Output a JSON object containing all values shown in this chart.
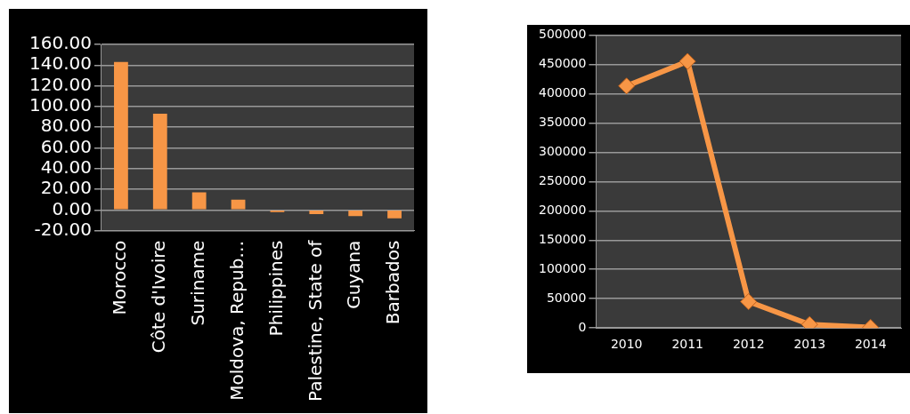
{
  "chart_data": [
    {
      "type": "bar",
      "categories": [
        "Morocco",
        "Côte d'Ivoire",
        "Suriname",
        "Moldova, Repub…",
        "Philippines",
        "Palestine, State of",
        "Guyana",
        "Barbados"
      ],
      "values": [
        143,
        93,
        17,
        10,
        -2,
        -4,
        -6,
        -8
      ],
      "color": "#f79646",
      "ylim": [
        -20,
        160
      ],
      "yticks": [
        {
          "value": -20,
          "label": "-20.00"
        },
        {
          "value": 0,
          "label": "0.00"
        },
        {
          "value": 20,
          "label": "20.00"
        },
        {
          "value": 40,
          "label": "40.00"
        },
        {
          "value": 60,
          "label": "60.00"
        },
        {
          "value": 80,
          "label": "80.00"
        },
        {
          "value": 100,
          "label": "100.00"
        },
        {
          "value": 120,
          "label": "120.00"
        },
        {
          "value": 140,
          "label": "140.00"
        },
        {
          "value": 160,
          "label": "160.00"
        }
      ],
      "grid": "y"
    },
    {
      "type": "line",
      "categories": [
        "2010",
        "2011",
        "2012",
        "2013",
        "2014"
      ],
      "values": [
        413000,
        455000,
        45000,
        6000,
        1000
      ],
      "color": "#f79646",
      "marker": "diamond",
      "ylim": [
        0,
        500000
      ],
      "yticks": [
        0,
        50000,
        100000,
        150000,
        200000,
        250000,
        300000,
        350000,
        400000,
        450000,
        500000
      ],
      "grid": "y"
    }
  ]
}
